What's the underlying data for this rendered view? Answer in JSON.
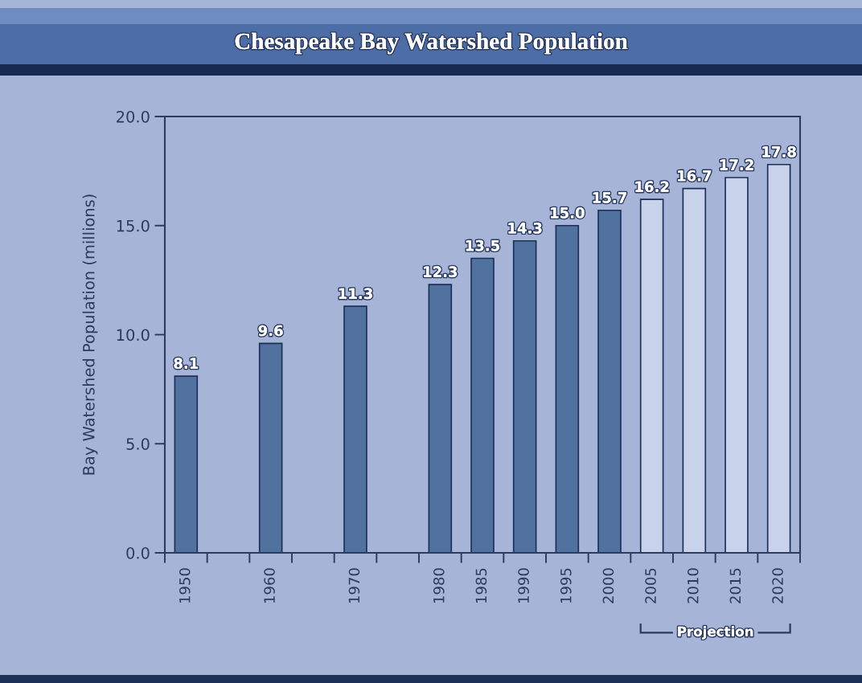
{
  "chart_data": {
    "type": "bar",
    "title": "Chesapeake Bay Watershed Population",
    "ylabel": "Bay Watershed Population (millions)",
    "x": [
      1950,
      1960,
      1970,
      1980,
      1985,
      1990,
      1995,
      2000,
      2005,
      2010,
      2015,
      2020
    ],
    "series": [
      {
        "color": "#51719f",
        "values": [
          8.1,
          9.6,
          11.3,
          12.3,
          13.5,
          14.3,
          15.0,
          15.7,
          null,
          null,
          null,
          null
        ],
        "value_labels": [
          "8.1",
          "9.6",
          "11.3",
          "12.3",
          "13.5",
          "14.3",
          "15.0",
          "15.7",
          null,
          null,
          null,
          null
        ]
      },
      {
        "name": "Projection",
        "color": "#c8d2ea",
        "values": [
          null,
          null,
          null,
          null,
          null,
          null,
          null,
          null,
          16.2,
          16.7,
          17.2,
          17.8
        ],
        "value_labels": [
          null,
          null,
          null,
          null,
          null,
          null,
          null,
          null,
          "16.2",
          "16.7",
          "17.2",
          "17.8"
        ]
      }
    ],
    "xlim": [
      1947.5,
      2022.5
    ],
    "xticks": [
      {
        "value": 1947.5,
        "label": null
      },
      1950,
      {
        "value": 1952.5,
        "label": null
      },
      {
        "value": 1957.5,
        "label": null
      },
      1960,
      {
        "value": 1962.5,
        "label": null
      },
      {
        "value": 1967.5,
        "label": null
      },
      1970,
      {
        "value": 1972.5,
        "label": null
      },
      {
        "value": 1977.5,
        "label": null
      },
      1980,
      {
        "value": 1982.5,
        "label": null
      },
      1985,
      {
        "value": 1987.5,
        "label": null
      },
      1990,
      {
        "value": 1992.5,
        "label": null
      },
      1995,
      {
        "value": 1997.5,
        "label": null
      },
      2000,
      {
        "value": 2002.5,
        "label": null
      },
      2005,
      {
        "value": 2007.5,
        "label": null
      },
      2010,
      {
        "value": 2012.5,
        "label": null
      },
      2015,
      {
        "value": 2017.5,
        "label": null
      },
      2020,
      {
        "value": 2022.5,
        "label": null
      }
    ],
    "ylim": [
      0,
      20
    ],
    "yticks": [
      {
        "value": 0,
        "label": "0.0"
      },
      {
        "value": 5,
        "label": "5.0"
      },
      {
        "value": 10,
        "label": "10.0"
      },
      {
        "value": 15,
        "label": "15.0"
      },
      {
        "value": 20,
        "label": "20.0"
      }
    ],
    "grid": false
  }
}
